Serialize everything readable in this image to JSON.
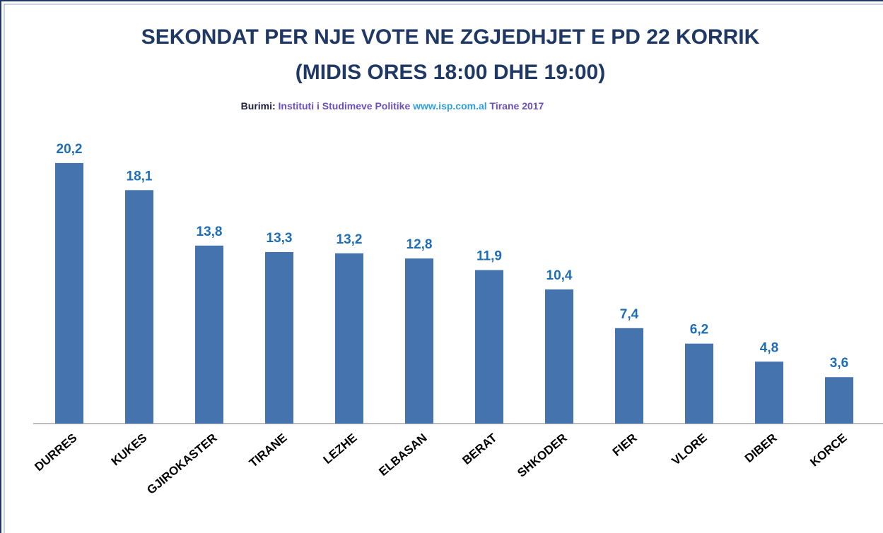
{
  "chart_data": {
    "type": "bar",
    "title": [
      "SEKONDAT PER NJE VOTE NE ZGJEDHJET E PD 22 KORRIK",
      "(MIDIS ORES 18:00 DHE 19:00)"
    ],
    "source": {
      "label": "Burimi:",
      "name": "Instituti i Studimeve Politike",
      "url": "www.isp.com.al",
      "place": "Tirane 2017"
    },
    "categories": [
      "DURRES",
      "KUKES",
      "GJIROKASTER",
      "TIRANE",
      "LEZHE",
      "ELBASAN",
      "BERAT",
      "SHKODER",
      "FIER",
      "VLORE",
      "DIBER",
      "KORCE"
    ],
    "values": [
      20.2,
      18.1,
      13.8,
      13.3,
      13.2,
      12.8,
      11.9,
      10.4,
      7.4,
      6.2,
      4.8,
      3.6
    ],
    "value_labels": [
      "20,2",
      "18,1",
      "13,8",
      "13,3",
      "13,2",
      "12,8",
      "11,9",
      "10,4",
      "7,4",
      "6,2",
      "4,8",
      "3,6"
    ],
    "color": "#4473ae"
  }
}
